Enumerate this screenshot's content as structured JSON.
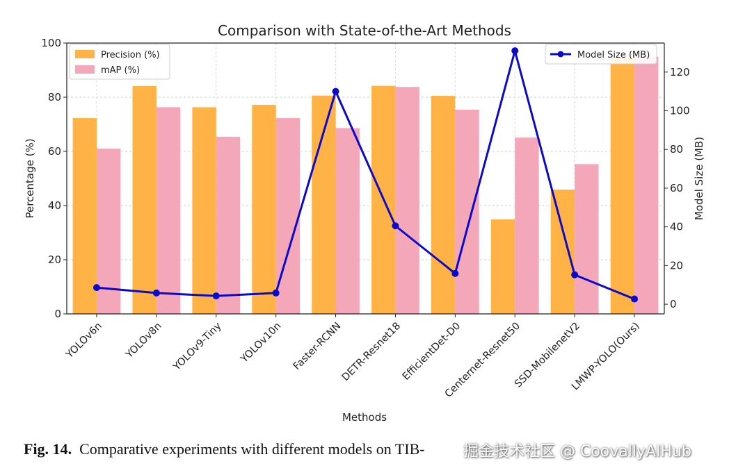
{
  "chart_data": {
    "type": "bar",
    "title": "Comparison with State-of-the-Art Methods",
    "xlabel": "Methods",
    "ylabel": "Percentage (%)",
    "ylabel_right": "Model Size (MB)",
    "ylim": [
      0,
      100
    ],
    "ylim_right": [
      -5,
      135
    ],
    "yticks": [
      0,
      20,
      40,
      60,
      80,
      100
    ],
    "yticks_right": [
      0,
      20,
      40,
      60,
      80,
      100,
      120
    ],
    "grid": true,
    "categories": [
      "YOLOv6n",
      "YOLOv8n",
      "YOLOv9-Tiny",
      "YOLOv10n",
      "Faster-RCNN",
      "DETR-Resnet18",
      "EfficientDet-D0",
      "Centernet-Resnet50",
      "SSD-MobilenetV2",
      "LMWP-YOLO(Ours)"
    ],
    "series": [
      {
        "name": "Precision (%)",
        "kind": "bar",
        "axis": "left",
        "color": "#FFB347",
        "values": [
          72.3,
          84.1,
          76.3,
          77.2,
          80.6,
          84.2,
          80.5,
          34.9,
          45.9,
          95
        ]
      },
      {
        "name": "mAP (%)",
        "kind": "bar",
        "axis": "left",
        "color": "#F4A7B9",
        "values": [
          61.0,
          76.3,
          65.4,
          72.3,
          68.6,
          83.8,
          75.4,
          65.1,
          55.3,
          95
        ]
      },
      {
        "name": "Model Size (MB)",
        "kind": "line",
        "axis": "right",
        "color": "#0A0AC8",
        "values": [
          8.6,
          5.8,
          4.3,
          5.8,
          110.0,
          40.5,
          15.9,
          131.0,
          15.2,
          2.7
        ]
      }
    ],
    "legend_left_placement": "top-left",
    "legend_right_placement": "top-right"
  },
  "caption": {
    "label": "Fig. 14",
    "text": "Comparative experiments with different models on TIB-"
  },
  "watermark": "掘金技术社区 @ CoovallyAIHub"
}
